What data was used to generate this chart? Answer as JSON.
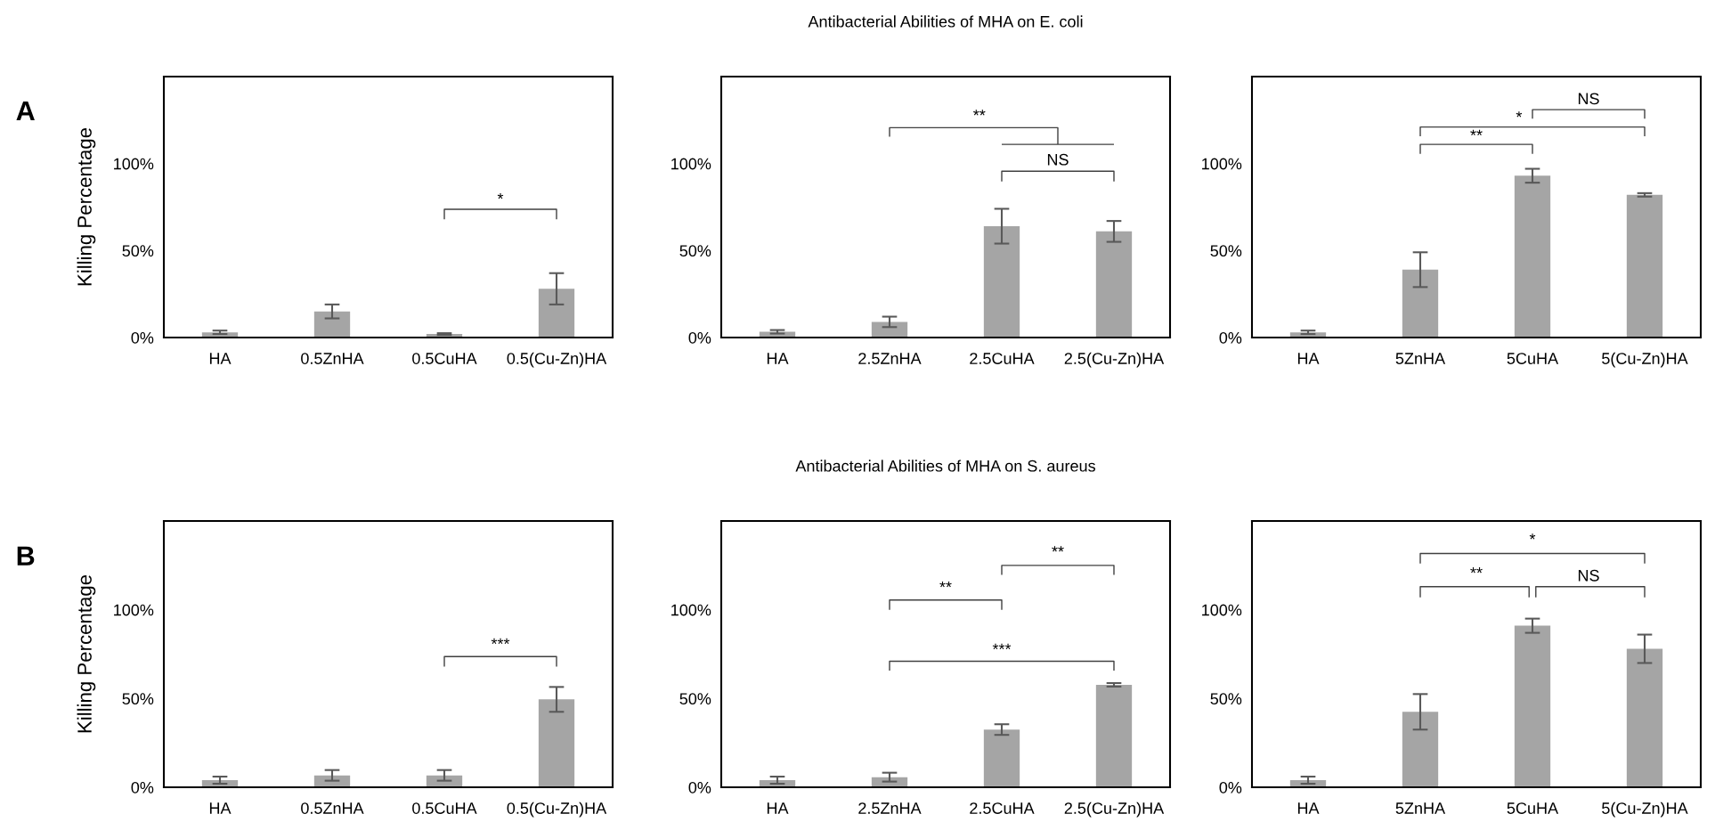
{
  "chart_data": [
    {
      "type": "bar",
      "ylabel": "Killing Percentage",
      "categories": [
        "HA",
        "0.5ZnHA",
        "0.5CuHA",
        "0.5(Cu-Zn)HA"
      ],
      "values": [
        3,
        15,
        2,
        28
      ],
      "errors": [
        1,
        4,
        0.5,
        9
      ],
      "color": "#a5a5a5",
      "ylim": [
        0,
        150
      ],
      "yticks": [
        {
          "value": 0,
          "label": "0%"
        },
        {
          "value": 50,
          "label": "50%"
        },
        {
          "value": 100,
          "label": "100%"
        }
      ],
      "grid": false,
      "annotations": [
        "A",
        "*"
      ]
    },
    {
      "type": "bar",
      "title": "Antibacterial Abilities of MHA on E. coli",
      "categories": [
        "HA",
        "2.5ZnHA",
        "2.5CuHA",
        "2.5(Cu-Zn)HA"
      ],
      "values": [
        3.3,
        9,
        64,
        61
      ],
      "errors": [
        1,
        3,
        10,
        6
      ],
      "color": "#a5a5a5",
      "ylim": [
        0,
        150
      ],
      "yticks": [
        {
          "value": 0,
          "label": "0%"
        },
        {
          "value": 50,
          "label": "50%"
        },
        {
          "value": 100,
          "label": "100%"
        }
      ],
      "grid": false,
      "annotations": [
        "**",
        "NS"
      ]
    },
    {
      "type": "bar",
      "categories": [
        "HA",
        "5ZnHA",
        "5CuHA",
        "5(Cu-Zn)HA"
      ],
      "values": [
        3,
        39,
        93,
        82
      ],
      "errors": [
        1,
        10,
        4,
        1
      ],
      "color": "#a5a5a5",
      "ylim": [
        0,
        150
      ],
      "yticks": [
        {
          "value": 0,
          "label": "0%"
        },
        {
          "value": 50,
          "label": "50%"
        },
        {
          "value": 100,
          "label": "100%"
        }
      ],
      "grid": false,
      "annotations": [
        "**",
        "*",
        "NS"
      ]
    },
    {
      "type": "bar",
      "ylabel": "Killing Percentage",
      "categories": [
        "HA",
        "0.5ZnHA",
        "0.5CuHA",
        "0.5(Cu-Zn)HA"
      ],
      "values": [
        4,
        6.7,
        6.7,
        49.5
      ],
      "errors": [
        2,
        3,
        3,
        7
      ],
      "color": "#a5a5a5",
      "ylim": [
        0,
        150
      ],
      "yticks": [
        {
          "value": 0,
          "label": "0%"
        },
        {
          "value": 50,
          "label": "50%"
        },
        {
          "value": 100,
          "label": "100%"
        }
      ],
      "grid": false,
      "annotations": [
        "B",
        "***"
      ]
    },
    {
      "type": "bar",
      "title": "Antibacterial Abilities of MHA on S. aureus",
      "categories": [
        "HA",
        "2.5ZnHA",
        "2.5CuHA",
        "2.5(Cu-Zn)HA"
      ],
      "values": [
        4,
        5.7,
        32.5,
        57.7
      ],
      "errors": [
        2,
        2.5,
        3,
        1
      ],
      "color": "#a5a5a5",
      "ylim": [
        0,
        150
      ],
      "yticks": [
        {
          "value": 0,
          "label": "0%"
        },
        {
          "value": 50,
          "label": "50%"
        },
        {
          "value": 100,
          "label": "100%"
        }
      ],
      "grid": false,
      "annotations": [
        "**",
        "**",
        "***"
      ]
    },
    {
      "type": "bar",
      "categories": [
        "HA",
        "5ZnHA",
        "5CuHA",
        "5(Cu-Zn)HA"
      ],
      "values": [
        4,
        42.5,
        91,
        78
      ],
      "errors": [
        2,
        10,
        4,
        8
      ],
      "color": "#a5a5a5",
      "ylim": [
        0,
        150
      ],
      "yticks": [
        {
          "value": 0,
          "label": "0%"
        },
        {
          "value": 50,
          "label": "50%"
        },
        {
          "value": 100,
          "label": "100%"
        }
      ],
      "grid": false,
      "annotations": [
        "*",
        "**",
        "NS"
      ]
    }
  ]
}
